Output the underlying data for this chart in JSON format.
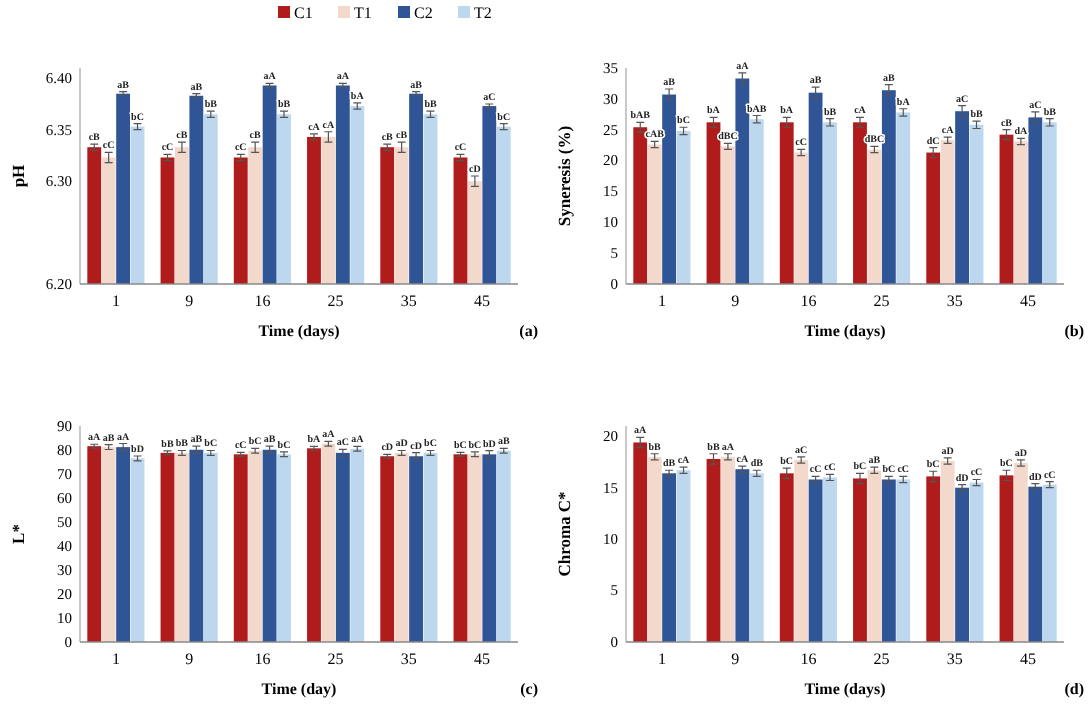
{
  "chart_data": [
    {
      "type": "bar",
      "xlabel": "Time (days)",
      "ylabel": "pH",
      "categories": [
        "1",
        "9",
        "16",
        "25",
        "35",
        "45"
      ],
      "ylim": [
        6.2,
        6.41
      ],
      "yticks": [
        {
          "value": 6.2,
          "label": "6.20"
        },
        {
          "value": 6.3,
          "label": "6.30"
        },
        {
          "value": 6.35,
          "label": "6.35"
        },
        {
          "value": 6.4,
          "label": "6.40"
        }
      ],
      "legend": "top right",
      "annotations": [
        "(a)"
      ],
      "series": [
        {
          "name": "C1",
          "color": "#b01c1c",
          "values": [
            6.333,
            6.323,
            6.323,
            6.343,
            6.333,
            6.323
          ],
          "errors": [
            0.003,
            0.003,
            0.003,
            0.003,
            0.003,
            0.003
          ],
          "value_labels": [
            "cB",
            "cC",
            "cC",
            "cA",
            "cB",
            "cC"
          ]
        },
        {
          "name": "T1",
          "color": "#f2d9cc",
          "values": [
            6.323,
            6.333,
            6.333,
            6.343,
            6.333,
            6.3
          ],
          "errors": [
            0.005,
            0.005,
            0.005,
            0.005,
            0.005,
            0.005
          ],
          "value_labels": [
            "cC",
            "cB",
            "cB",
            "cA",
            "cB",
            "cD"
          ]
        },
        {
          "name": "C2",
          "color": "#2f5597",
          "values": [
            6.385,
            6.383,
            6.393,
            6.393,
            6.385,
            6.373
          ],
          "errors": [
            0.002,
            0.002,
            0.002,
            0.002,
            0.002,
            0.002
          ],
          "value_labels": [
            "aB",
            "aB",
            "aA",
            "aA",
            "aB",
            "aC"
          ]
        },
        {
          "name": "T2",
          "color": "#bdd7ee",
          "values": [
            6.353,
            6.365,
            6.365,
            6.373,
            6.365,
            6.353
          ],
          "errors": [
            0.003,
            0.003,
            0.003,
            0.003,
            0.003,
            0.003
          ],
          "value_labels": [
            "bC",
            "bB",
            "bB",
            "bA",
            "bB",
            "bC"
          ]
        }
      ]
    },
    {
      "type": "bar",
      "xlabel": "Time (days)",
      "ylabel": "Syneresis (%)",
      "categories": [
        "1",
        "9",
        "16",
        "25",
        "35",
        "45"
      ],
      "ylim": [
        0,
        35
      ],
      "yticks": [
        0,
        5,
        10,
        15,
        20,
        25,
        30,
        35
      ],
      "annotations": [
        "(b)"
      ],
      "series": [
        {
          "color": "#b01c1c",
          "values": [
            25.4,
            26.2,
            26.2,
            26.2,
            21.3,
            24.2
          ],
          "errors": [
            0.8,
            0.8,
            0.8,
            0.8,
            0.8,
            0.8
          ],
          "value_labels": [
            "bAB",
            "bA",
            "bA",
            "cA",
            "dC",
            "cB"
          ]
        },
        {
          "color": "#f2d9cc",
          "values": [
            22.6,
            22.3,
            21.3,
            21.8,
            23.3,
            23.1
          ],
          "errors": [
            0.5,
            0.5,
            0.5,
            0.5,
            0.5,
            0.5
          ],
          "value_labels": [
            "cAB",
            "dBC",
            "cC",
            "dBC",
            "cA",
            "dA"
          ]
        },
        {
          "color": "#2f5597",
          "values": [
            30.7,
            33.3,
            31,
            31.4,
            28,
            27
          ],
          "errors": [
            0.9,
            0.9,
            0.9,
            0.9,
            0.9,
            0.9
          ],
          "value_labels": [
            "aB",
            "aA",
            "aB",
            "aB",
            "aC",
            "aC"
          ]
        },
        {
          "color": "#bdd7ee",
          "values": [
            24.8,
            26.7,
            26.2,
            27.8,
            25.8,
            26.2
          ],
          "errors": [
            0.6,
            0.6,
            0.6,
            0.6,
            0.6,
            0.6
          ],
          "value_labels": [
            "bC",
            "bAB",
            "bB",
            "bA",
            "bB",
            "bB"
          ]
        }
      ]
    },
    {
      "type": "bar",
      "xlabel": "Time (day)",
      "ylabel": "L*",
      "categories": [
        "1",
        "9",
        "16",
        "25",
        "35",
        "45"
      ],
      "ylim": [
        0,
        90
      ],
      "yticks": [
        0,
        10,
        20,
        30,
        40,
        50,
        60,
        70,
        80,
        90
      ],
      "annotations": [
        "(c)"
      ],
      "series": [
        {
          "color": "#b01c1c",
          "values": [
            81.6,
            78.8,
            78.2,
            80.7,
            77.4,
            78.2
          ],
          "errors": [
            0.8,
            0.8,
            0.8,
            0.8,
            0.8,
            0.8
          ],
          "value_labels": [
            "aA",
            "bB",
            "cC",
            "bA",
            "cD",
            "bC"
          ]
        },
        {
          "color": "#f2d9cc",
          "values": [
            81.2,
            78.8,
            79.7,
            82.6,
            78.8,
            78.2
          ],
          "errors": [
            1,
            1,
            1,
            1,
            1,
            1
          ],
          "value_labels": [
            "aB",
            "bB",
            "bC",
            "aA",
            "aD",
            "bC"
          ]
        },
        {
          "color": "#2f5597",
          "values": [
            81.2,
            80.1,
            80.1,
            78.8,
            77.4,
            78.2
          ],
          "errors": [
            1.5,
            1.5,
            1.5,
            1.5,
            1.5,
            1.5
          ],
          "value_labels": [
            "aA",
            "aB",
            "aB",
            "aC",
            "cD",
            "bD"
          ]
        },
        {
          "color": "#bdd7ee",
          "values": [
            76.5,
            78.8,
            78.2,
            80.5,
            78.8,
            79.7
          ],
          "errors": [
            1,
            1,
            1,
            1,
            1,
            1
          ],
          "value_labels": [
            "bD",
            "bC",
            "bC",
            "aA",
            "bC",
            "aB"
          ]
        }
      ]
    },
    {
      "type": "bar",
      "xlabel": "Time (days)",
      "ylabel": "Chroma C*",
      "categories": [
        "1",
        "9",
        "16",
        "25",
        "35",
        "45"
      ],
      "ylim": [
        0,
        21
      ],
      "yticks": [
        0,
        5,
        10,
        15,
        20
      ],
      "annotations": [
        "(d)"
      ],
      "series": [
        {
          "color": "#b01c1c",
          "values": [
            19.4,
            17.8,
            16.4,
            15.9,
            16.1,
            16.2
          ],
          "errors": [
            0.5,
            0.5,
            0.5,
            0.5,
            0.5,
            0.5
          ],
          "value_labels": [
            "aA",
            "bB",
            "bC",
            "bC",
            "bC",
            "bC"
          ]
        },
        {
          "color": "#f2d9cc",
          "values": [
            18,
            18,
            17.7,
            16.7,
            17.6,
            17.4
          ],
          "errors": [
            0.3,
            0.3,
            0.3,
            0.3,
            0.3,
            0.3
          ],
          "value_labels": [
            "bB",
            "aA",
            "aC",
            "aB",
            "aD",
            "aD"
          ]
        },
        {
          "color": "#2f5597",
          "values": [
            16.4,
            16.8,
            15.8,
            15.8,
            15,
            15.1
          ],
          "errors": [
            0.3,
            0.3,
            0.3,
            0.3,
            0.3,
            0.3
          ],
          "value_labels": [
            "dB",
            "cA",
            "cC",
            "bC",
            "dD",
            "dD"
          ]
        },
        {
          "color": "#bdd7ee",
          "values": [
            16.7,
            16.4,
            16,
            15.8,
            15.5,
            15.3
          ],
          "errors": [
            0.3,
            0.3,
            0.3,
            0.3,
            0.3,
            0.3
          ],
          "value_labels": [
            "cA",
            "dB",
            "cC",
            "cC",
            "cC",
            "cC"
          ]
        }
      ]
    }
  ]
}
